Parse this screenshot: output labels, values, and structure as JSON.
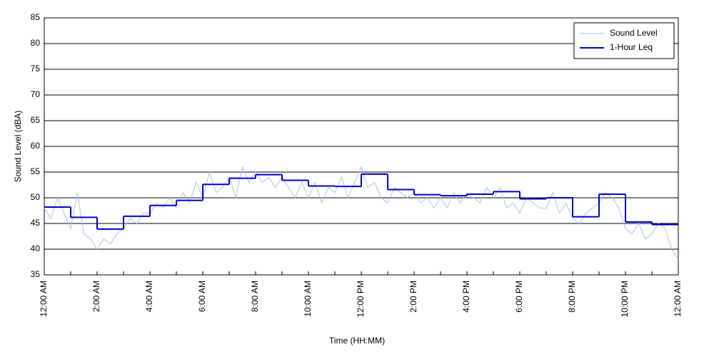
{
  "chart_data": {
    "type": "line",
    "xlabel": "Time (HH:MM)",
    "ylabel": "Sound Level (dBA)",
    "xlim": [
      0,
      24
    ],
    "ylim": [
      35,
      85
    ],
    "xticks": [
      {
        "value": 0,
        "label": "12:00 AM"
      },
      {
        "value": 2,
        "label": "2:00 AM"
      },
      {
        "value": 4,
        "label": "4:00 AM"
      },
      {
        "value": 6,
        "label": "6:00 AM"
      },
      {
        "value": 8,
        "label": "8:00 AM"
      },
      {
        "value": 10,
        "label": "10:00 AM"
      },
      {
        "value": 12,
        "label": "12:00 PM"
      },
      {
        "value": 14,
        "label": "2:00 PM"
      },
      {
        "value": 16,
        "label": "4:00 PM"
      },
      {
        "value": 18,
        "label": "6:00 PM"
      },
      {
        "value": 20,
        "label": "8:00 PM"
      },
      {
        "value": 22,
        "label": "10:00 PM"
      },
      {
        "value": 24,
        "label": "12:00 AM"
      }
    ],
    "xminorticks": [
      1,
      3,
      5,
      7,
      9,
      11,
      13,
      15,
      17,
      19,
      21,
      23
    ],
    "yticks": [
      35,
      40,
      45,
      50,
      55,
      60,
      65,
      70,
      75,
      80,
      85
    ],
    "grid": true,
    "legend": "upper right",
    "series": [
      {
        "name": "Sound Level",
        "color": "#a9c4f5",
        "x": [
          0,
          0.25,
          0.5,
          0.75,
          1,
          1.25,
          1.5,
          1.75,
          2,
          2.25,
          2.5,
          2.75,
          3,
          3.25,
          3.5,
          3.75,
          4,
          4.25,
          4.5,
          4.75,
          5,
          5.25,
          5.5,
          5.75,
          6,
          6.25,
          6.5,
          6.75,
          7,
          7.25,
          7.5,
          7.75,
          8,
          8.25,
          8.5,
          8.75,
          9,
          9.25,
          9.5,
          9.75,
          10,
          10.25,
          10.5,
          10.75,
          11,
          11.25,
          11.5,
          11.75,
          12,
          12.25,
          12.5,
          12.75,
          13,
          13.25,
          13.5,
          13.75,
          14,
          14.25,
          14.5,
          14.75,
          15,
          15.25,
          15.5,
          15.75,
          16,
          16.25,
          16.5,
          16.75,
          17,
          17.25,
          17.5,
          17.75,
          18,
          18.25,
          18.5,
          18.75,
          19,
          19.25,
          19.5,
          19.75,
          20,
          20.25,
          20.5,
          20.75,
          21,
          21.25,
          21.5,
          21.75,
          22,
          22.25,
          22.5,
          22.75,
          23,
          23.25,
          23.5,
          23.75,
          24
        ],
        "values": [
          48,
          46,
          50,
          47,
          44,
          51,
          43,
          42,
          40,
          42,
          41,
          43,
          44,
          46,
          45,
          47,
          47,
          49,
          48,
          50,
          48,
          51,
          49,
          53,
          50,
          55,
          51,
          52,
          54,
          50,
          56,
          53,
          55,
          53,
          54,
          52,
          54,
          52,
          50,
          53,
          50,
          53,
          49,
          52,
          51,
          54,
          50,
          53,
          56,
          52,
          53,
          50,
          49,
          52,
          51,
          50,
          51,
          49,
          50,
          48,
          50,
          48,
          51,
          49,
          51,
          50,
          49,
          52,
          50,
          52,
          48,
          49,
          47,
          50,
          49,
          48,
          48,
          51,
          47,
          49,
          46,
          45,
          47,
          48,
          49,
          51,
          50,
          48,
          44,
          43,
          45,
          42,
          43,
          45,
          44,
          40,
          38
        ]
      },
      {
        "name": "1-Hour Leq",
        "color": "#0000cc",
        "step": true,
        "x": [
          0,
          1,
          2,
          3,
          4,
          5,
          6,
          7,
          8,
          9,
          10,
          11,
          12,
          13,
          14,
          15,
          16,
          17,
          18,
          19,
          20,
          21,
          22,
          23
        ],
        "values": [
          48.2,
          46.2,
          43.9,
          46.4,
          48.5,
          49.5,
          52.6,
          53.8,
          54.5,
          53.4,
          52.3,
          52.2,
          54.6,
          51.6,
          50.6,
          50.4,
          50.7,
          51.2,
          49.8,
          50.0,
          46.3,
          50.7,
          45.3,
          44.8
        ]
      }
    ]
  }
}
